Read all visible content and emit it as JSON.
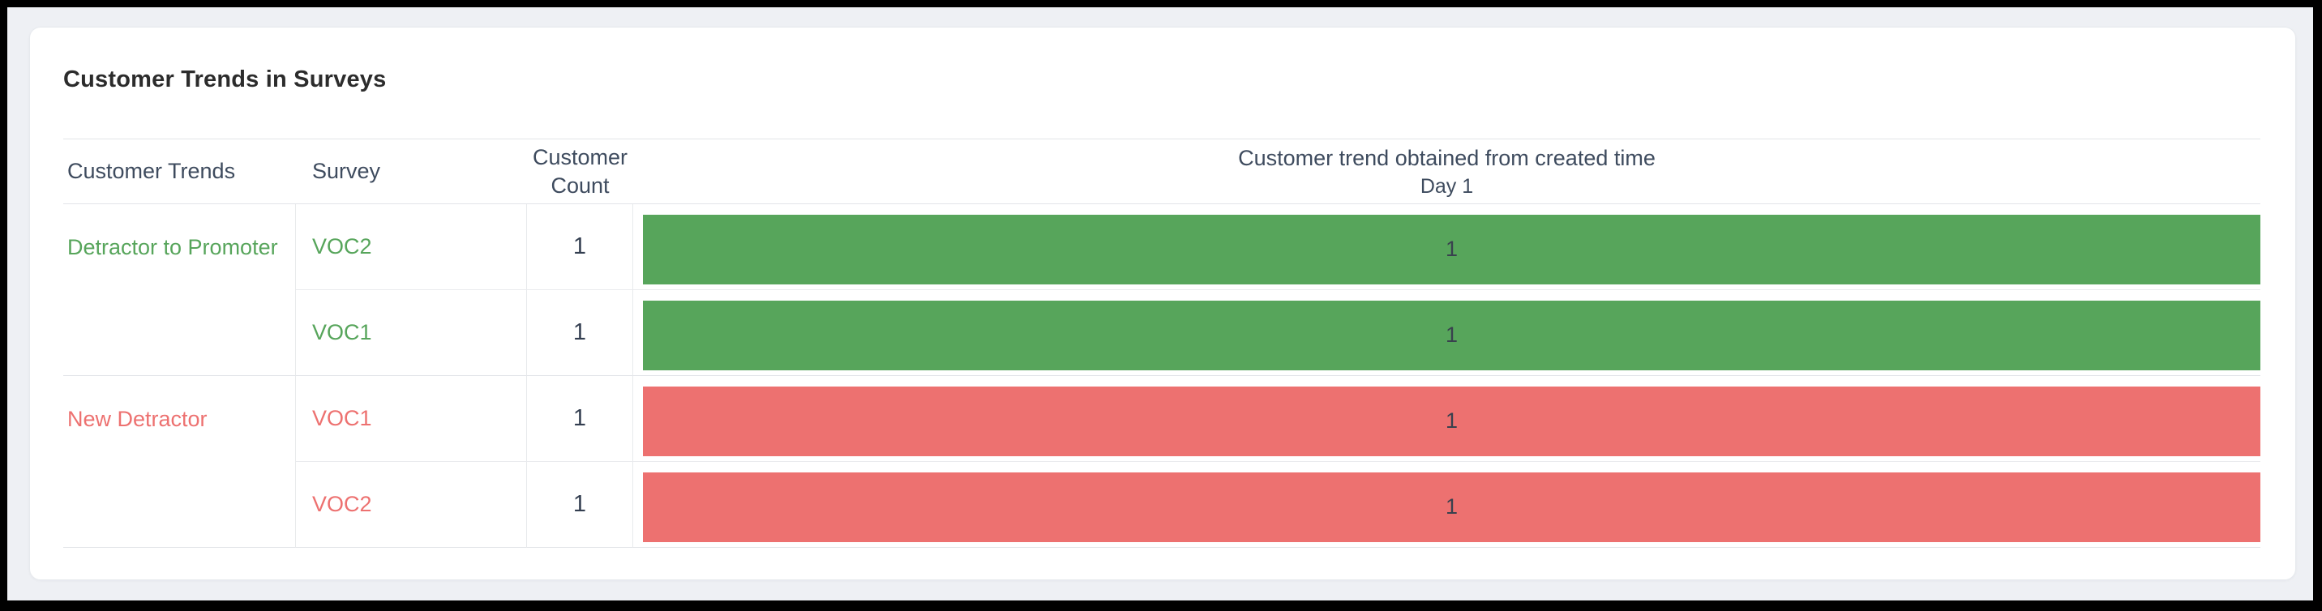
{
  "report": {
    "title": "Customer Trends in Surveys",
    "headers": {
      "customer_trends": "Customer Trends",
      "survey": "Survey",
      "customer_count": "Customer Count",
      "chart_title": "Customer trend obtained from created time",
      "chart_axis_label": "Day 1"
    },
    "groups": [
      {
        "trend": "Detractor to Promoter",
        "color": "#57a55b",
        "rows": [
          {
            "survey": "VOC2",
            "count": "1",
            "bar_label": "1"
          },
          {
            "survey": "VOC1",
            "count": "1",
            "bar_label": "1"
          }
        ]
      },
      {
        "trend": "New Detractor",
        "color": "#ed7170",
        "rows": [
          {
            "survey": "VOC1",
            "count": "1",
            "bar_label": "1"
          },
          {
            "survey": "VOC2",
            "count": "1",
            "bar_label": "1"
          }
        ]
      }
    ]
  },
  "colors": {
    "positive_trend": "#57a55b",
    "negative_trend": "#ed7170",
    "bar_value_label": "#39414e",
    "header_text": "#3e4b5e",
    "count_text": "#333e50",
    "title_text": "#2c2c2c",
    "page_background": "#eef0f4",
    "card_background": "#ffffff"
  },
  "chart_data": {
    "type": "bar",
    "orientation": "horizontal",
    "title": "Customer trend obtained from created time",
    "x_tick_labels": [
      "Day 1"
    ],
    "value_range": [
      0,
      1
    ],
    "categories": [
      "Detractor to Promoter / VOC2",
      "Detractor to Promoter / VOC1",
      "New Detractor / VOC1",
      "New Detractor / VOC2"
    ],
    "values": [
      1,
      1,
      1,
      1
    ],
    "bar_colors": [
      "#57a55b",
      "#57a55b",
      "#ed7170",
      "#ed7170"
    ],
    "customer_counts": [
      1,
      1,
      1,
      1
    ],
    "data_labels_shown": true,
    "grid": false,
    "legend": "none"
  }
}
